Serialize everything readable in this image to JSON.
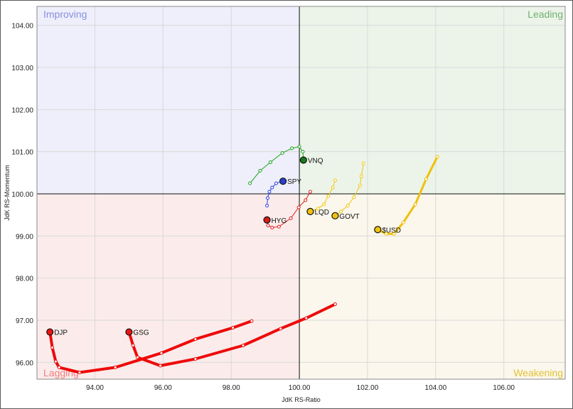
{
  "chart_data": {
    "type": "scatter",
    "title": "",
    "xlabel": "JdK RS-Ratio",
    "ylabel": "JdK RS-Momentum",
    "xlim": [
      92.3,
      107.8
    ],
    "ylim": [
      95.6,
      104.45
    ],
    "center": [
      100,
      100
    ],
    "x_ticks": [
      94,
      96,
      98,
      100,
      102,
      104,
      106
    ],
    "x_tick_labels": [
      "94.00",
      "96.00",
      "98.00",
      "100.00",
      "102.00",
      "104.00",
      "106.00"
    ],
    "y_ticks": [
      96,
      97,
      98,
      99,
      100,
      101,
      102,
      103,
      104
    ],
    "y_tick_labels": [
      "96.00",
      "97.00",
      "98.00",
      "99.00",
      "100.00",
      "101.00",
      "102.00",
      "103.00",
      "104.00"
    ],
    "grid": true,
    "quadrants": [
      {
        "name": "Improving",
        "color": "#8a8fe0",
        "fill": "#eeeffa"
      },
      {
        "name": "Leading",
        "color": "#6fb26f",
        "fill": "#ecf4ea"
      },
      {
        "name": "Lagging",
        "color": "#f07f7f",
        "fill": "#fbeceb"
      },
      {
        "name": "Weakening",
        "color": "#e3c233",
        "fill": "#fbf7ec"
      }
    ],
    "series": [
      {
        "name": "VNQ",
        "color": "#1fa01f",
        "head_color": "#1a7a1a",
        "width": 1,
        "points": [
          [
            98.55,
            100.25
          ],
          [
            98.85,
            100.55
          ],
          [
            99.15,
            100.75
          ],
          [
            99.5,
            100.97
          ],
          [
            99.78,
            101.08
          ],
          [
            100.0,
            101.12
          ],
          [
            100.1,
            101.0
          ],
          [
            100.12,
            100.8
          ]
        ]
      },
      {
        "name": "SPY",
        "color": "#2b3fe0",
        "head_color": "#2a3fd0",
        "width": 1,
        "points": [
          [
            99.05,
            99.72
          ],
          [
            99.07,
            99.9
          ],
          [
            99.12,
            100.05
          ],
          [
            99.2,
            100.15
          ],
          [
            99.32,
            100.25
          ],
          [
            99.52,
            100.3
          ]
        ]
      },
      {
        "name": "HYG",
        "color": "#e01f1f",
        "head_color": "#d51a1a",
        "width": 1,
        "points": [
          [
            100.32,
            100.05
          ],
          [
            100.18,
            99.85
          ],
          [
            99.98,
            99.68
          ],
          [
            99.75,
            99.42
          ],
          [
            99.4,
            99.22
          ],
          [
            99.2,
            99.2
          ],
          [
            99.08,
            99.25
          ],
          [
            99.05,
            99.38
          ]
        ]
      },
      {
        "name": "LQD",
        "color": "#eec60e",
        "head_color": "#f0c20c",
        "width": 1,
        "points": [
          [
            101.05,
            100.32
          ],
          [
            100.98,
            100.15
          ],
          [
            100.85,
            99.95
          ],
          [
            100.72,
            99.75
          ],
          [
            100.55,
            99.65
          ],
          [
            100.32,
            99.58
          ]
        ]
      },
      {
        "name": "GOVT",
        "color": "#eec60e",
        "head_color": "#f0c20c",
        "width": 1,
        "points": [
          [
            101.88,
            100.72
          ],
          [
            101.82,
            100.42
          ],
          [
            101.78,
            100.2
          ],
          [
            101.6,
            99.92
          ],
          [
            101.42,
            99.72
          ],
          [
            101.22,
            99.58
          ],
          [
            101.05,
            99.48
          ]
        ]
      },
      {
        "name": "$USD",
        "color": "#f0c00a",
        "head_color": "#f0c20c",
        "width": 3,
        "points": [
          [
            104.05,
            100.88
          ],
          [
            103.72,
            100.35
          ],
          [
            103.4,
            99.75
          ],
          [
            103.05,
            99.32
          ],
          [
            102.78,
            99.05
          ],
          [
            102.55,
            99.05
          ],
          [
            102.3,
            99.15
          ]
        ]
      },
      {
        "name": "DJP",
        "color": "#ee0a0a",
        "head_color": "#e81515",
        "width": 4,
        "points": [
          [
            98.6,
            96.98
          ],
          [
            98.05,
            96.82
          ],
          [
            96.95,
            96.55
          ],
          [
            95.95,
            96.22
          ],
          [
            94.6,
            95.88
          ],
          [
            93.55,
            95.76
          ],
          [
            92.95,
            95.88
          ],
          [
            92.85,
            96.02
          ],
          [
            92.75,
            96.35
          ],
          [
            92.68,
            96.72
          ]
        ]
      },
      {
        "name": "GSG",
        "color": "#ee0a0a",
        "head_color": "#e81515",
        "width": 4,
        "points": [
          [
            101.05,
            97.38
          ],
          [
            100.2,
            97.05
          ],
          [
            99.45,
            96.8
          ],
          [
            98.35,
            96.4
          ],
          [
            96.95,
            96.08
          ],
          [
            95.92,
            95.92
          ],
          [
            95.25,
            96.12
          ],
          [
            95.12,
            96.4
          ],
          [
            95.0,
            96.72
          ]
        ]
      }
    ]
  }
}
